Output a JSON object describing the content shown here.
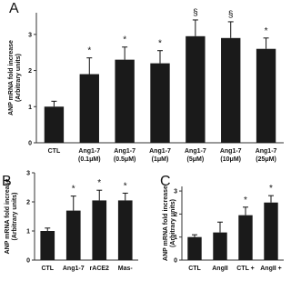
{
  "chart_data": [
    {
      "type": "bar",
      "label": "A",
      "y_label": [
        "ANP mRNA fold increase",
        "(Arbitrary units)"
      ],
      "categories": [
        [
          "CTL"
        ],
        [
          "Ang1-7",
          "(0.1μM)"
        ],
        [
          "Ang1-7",
          "(0.5μM)"
        ],
        [
          "Ang1-7",
          "(1μM)"
        ],
        [
          "Ang1-7",
          "(5μM)"
        ],
        [
          "Ang1-7",
          "(10μM)"
        ],
        [
          "Ang1-7",
          "(25μM)"
        ]
      ],
      "values": [
        1.0,
        1.9,
        2.3,
        2.2,
        2.95,
        2.9,
        2.6
      ],
      "errors": [
        0.15,
        0.45,
        0.35,
        0.35,
        0.45,
        0.45,
        0.3
      ],
      "markers": [
        null,
        "*",
        "*",
        "*",
        "§",
        "§",
        "*"
      ],
      "color": "#1a1a1a",
      "ylim": [
        0,
        3.6
      ],
      "yticks": [
        0,
        1,
        2,
        3
      ]
    },
    {
      "type": "bar",
      "label": "B",
      "y_label": [
        "ANP mRNA fold increase",
        "(Arbitrary units)"
      ],
      "categories": [
        [
          "CTL"
        ],
        [
          "Ang1-7"
        ],
        [
          "rACE2"
        ],
        [
          "Mas-"
        ]
      ],
      "values": [
        1.0,
        1.7,
        2.05,
        2.05
      ],
      "errors": [
        0.1,
        0.5,
        0.35,
        0.25
      ],
      "markers": [
        null,
        "*",
        "*",
        "*"
      ],
      "color": "#1a1a1a",
      "ylim": [
        0,
        3
      ],
      "yticks": [
        0,
        1,
        2,
        3
      ]
    },
    {
      "type": "bar",
      "label": "C",
      "y_label": [
        "ANP mRNA fold increase",
        "(Arbitrary units)"
      ],
      "categories": [
        [
          "CTL"
        ],
        [
          "AngII"
        ],
        [
          "CTL +"
        ],
        [
          "AngII +"
        ]
      ],
      "values": [
        1.0,
        1.2,
        1.95,
        2.5
      ],
      "errors": [
        0.1,
        0.45,
        0.35,
        0.3
      ],
      "markers": [
        null,
        null,
        "*",
        "*"
      ],
      "color": "#1a1a1a",
      "ylim": [
        0,
        3.2
      ],
      "yticks": [
        0,
        1,
        2,
        3
      ]
    }
  ]
}
